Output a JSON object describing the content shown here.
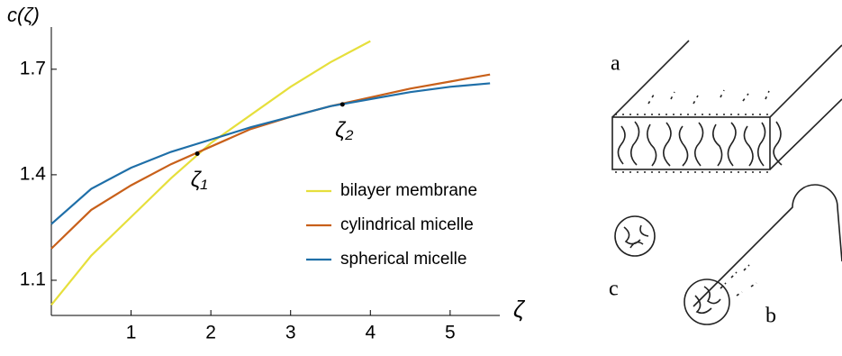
{
  "chart_data": {
    "type": "line",
    "y_label": "c(ζ)",
    "x_label": "ζ",
    "x": [
      0,
      0.5,
      1,
      1.5,
      2,
      2.5,
      3,
      3.5,
      4,
      4.5,
      5,
      5.5
    ],
    "series": [
      {
        "name": "bilayer membrane",
        "color": "#e6df3c",
        "values": [
          1.03,
          1.17,
          1.28,
          1.39,
          1.49,
          1.57,
          1.65,
          1.72,
          1.78,
          null,
          null,
          null
        ]
      },
      {
        "name": "cylindrical micelle",
        "color": "#c8601a",
        "values": [
          1.19,
          1.3,
          1.37,
          1.43,
          1.48,
          1.53,
          1.565,
          1.595,
          1.62,
          1.645,
          1.665,
          1.685
        ]
      },
      {
        "name": "spherical micelle",
        "color": "#1f6fa8",
        "values": [
          1.26,
          1.36,
          1.42,
          1.465,
          1.5,
          1.535,
          1.565,
          1.595,
          1.615,
          1.635,
          1.65,
          1.66
        ]
      }
    ],
    "points": [
      {
        "x": 1.83,
        "y": 1.46,
        "label": "ζ₁"
      },
      {
        "x": 3.65,
        "y": 1.6,
        "label": "ζ₂"
      }
    ],
    "xlim": [
      0,
      5.6
    ],
    "ylim": [
      1.0,
      1.82
    ],
    "xticks": [
      1,
      2,
      3,
      4,
      5
    ],
    "yticks": [
      1.1,
      1.4,
      1.7
    ]
  },
  "diagram": {
    "labels": [
      "a",
      "b",
      "c"
    ]
  }
}
